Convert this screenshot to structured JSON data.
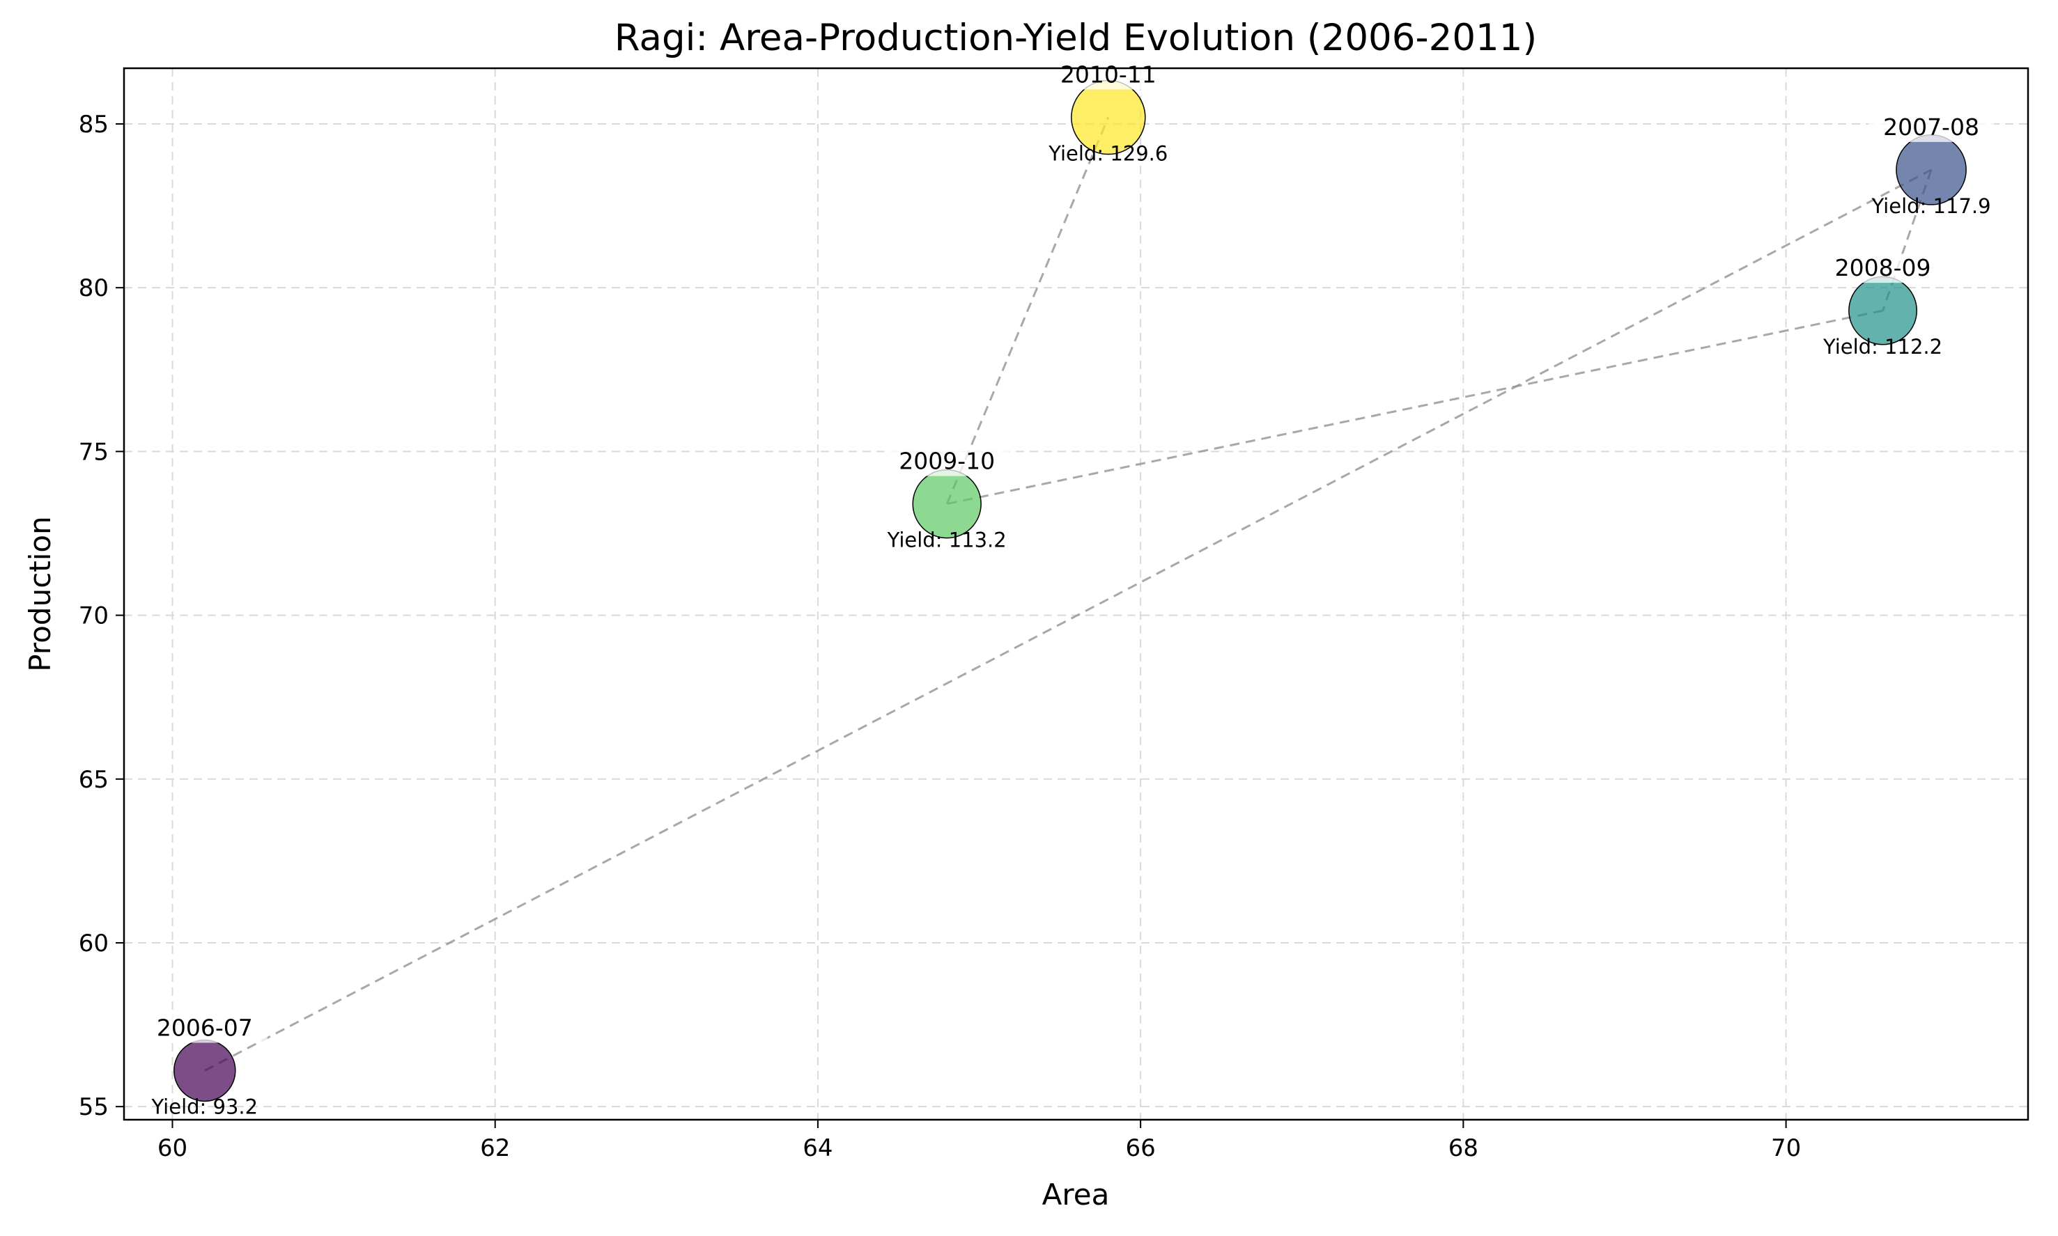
{
  "chart_data": {
    "type": "scatter",
    "title": "Ragi: Area-Production-Yield Evolution (2006-2011)",
    "xlabel": "Area",
    "ylabel": "Production",
    "xlim": [
      59.7,
      71.5
    ],
    "ylim": [
      54.6,
      86.7
    ],
    "xticks": [
      60,
      62,
      64,
      66,
      68,
      70
    ],
    "yticks": [
      55,
      60,
      65,
      70,
      75,
      80,
      85
    ],
    "grid": true,
    "colormap": "viridis",
    "path_color": "#999999",
    "points": [
      {
        "label": "2006-07",
        "x": 60.2,
        "y": 56.1,
        "yield": 93.2,
        "yield_text": "Yield: 93.2",
        "color": "#440154"
      },
      {
        "label": "2007-08",
        "x": 70.9,
        "y": 83.6,
        "yield": 117.9,
        "yield_text": "Yield: 117.9",
        "color": "#3b528b"
      },
      {
        "label": "2008-09",
        "x": 70.6,
        "y": 79.3,
        "yield": 112.2,
        "yield_text": "Yield: 112.2",
        "color": "#21918c"
      },
      {
        "label": "2009-10",
        "x": 64.8,
        "y": 73.4,
        "yield": 113.2,
        "yield_text": "Yield: 113.2",
        "color": "#5ec962"
      },
      {
        "label": "2010-11",
        "x": 65.8,
        "y": 85.2,
        "yield": 129.6,
        "yield_text": "Yield: 129.6",
        "color": "#fde725"
      }
    ]
  }
}
